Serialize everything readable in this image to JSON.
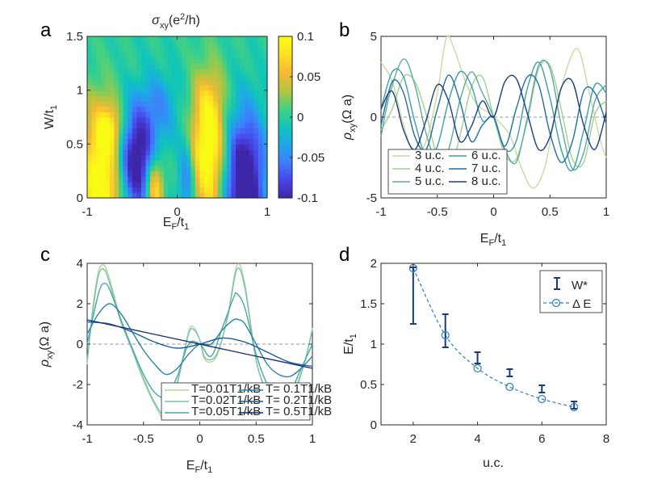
{
  "chart_data": [
    {
      "panel": "a",
      "type": "heatmap",
      "title": "σxy(e²/h)",
      "xlabel": "EF/t1",
      "ylabel": "W/t1",
      "xlim": [
        -1,
        1
      ],
      "ylim": [
        0,
        1.5
      ],
      "xticks": [
        "-1",
        "0",
        "1"
      ],
      "yticks": [
        "0",
        "0.5",
        "1",
        "1.5"
      ],
      "colorbar": {
        "min": -0.1,
        "max": 0.1,
        "ticks": [
          "-0.1",
          "-0.05",
          "0",
          "0.05",
          "0.1"
        ]
      },
      "colormap": [
        "#3e26a8",
        "#4744e8",
        "#3f7dfe",
        "#1ea8e6",
        "#10c5b8",
        "#45d180",
        "#b4c53e",
        "#f6b835",
        "#fbe023",
        "#f9fb15"
      ]
    },
    {
      "panel": "b",
      "type": "line",
      "xlabel": "EF/t1",
      "ylabel": "ρxy(Ω a)",
      "xlim": [
        -1,
        1
      ],
      "ylim": [
        -5,
        5
      ],
      "xticks": [
        "-1",
        "-0.5",
        "0",
        "0.5",
        "1"
      ],
      "yticks": [
        "-5",
        "0",
        "5"
      ],
      "series": [
        {
          "name": "3 u.c.",
          "color": "#c3dca2",
          "x": [
            -1,
            -0.9,
            -0.8,
            -0.7,
            -0.6,
            -0.5,
            -0.42,
            -0.35,
            -0.25,
            -0.15,
            -0.05,
            0,
            0.05,
            0.15,
            0.25,
            0.35,
            0.45,
            0.55,
            0.65,
            0.75,
            0.85,
            0.95,
            1
          ],
          "y": [
            3.4,
            2.2,
            -0.5,
            -2.3,
            -1.5,
            1.5,
            4.9,
            4.2,
            2.2,
            0.8,
            0.3,
            0,
            -0.3,
            -1.2,
            -3.2,
            -4.4,
            -3.2,
            0.2,
            3.0,
            4.2,
            1.5,
            -1.5,
            -2.5
          ]
        },
        {
          "name": "4 u.c.",
          "color": "#a2cf93",
          "x": [
            -1,
            -0.9,
            -0.8,
            -0.7,
            -0.6,
            -0.5,
            -0.4,
            -0.3,
            -0.2,
            -0.1,
            0,
            0.1,
            0.2,
            0.3,
            0.4,
            0.5,
            0.6,
            0.7,
            0.8,
            0.9,
            1
          ],
          "y": [
            -0.8,
            0.5,
            2.5,
            2.2,
            0.2,
            -2.5,
            -3.5,
            -1.2,
            1.8,
            2.5,
            0,
            -2.3,
            -2.6,
            -0.2,
            3.0,
            3.2,
            0.5,
            -2.6,
            -2.8,
            0.2,
            1.0
          ]
        },
        {
          "name": "5 u.c.",
          "color": "#5bac9c",
          "x": [
            -1,
            -0.92,
            -0.8,
            -0.7,
            -0.6,
            -0.5,
            -0.4,
            -0.3,
            -0.2,
            -0.1,
            0,
            0.1,
            0.2,
            0.3,
            0.4,
            0.5,
            0.6,
            0.7,
            0.8,
            0.9,
            1
          ],
          "y": [
            -1.2,
            1.5,
            3.6,
            2.0,
            -1.0,
            -2.8,
            -2.0,
            1.0,
            2.8,
            1.5,
            0,
            -2.0,
            -2.8,
            0.0,
            3.2,
            3.0,
            -0.5,
            -3.2,
            -2.2,
            1.0,
            2.0
          ]
        },
        {
          "name": "6 u.c.",
          "color": "#3a9fa8",
          "x": [
            -1,
            -0.9,
            -0.8,
            -0.7,
            -0.6,
            -0.5,
            -0.4,
            -0.3,
            -0.2,
            -0.1,
            0,
            0.1,
            0.2,
            0.3,
            0.4,
            0.5,
            0.6,
            0.7,
            0.8,
            0.9,
            1
          ],
          "y": [
            0.5,
            2.8,
            2.5,
            -0.3,
            -2.4,
            -1.8,
            1.0,
            2.8,
            2.0,
            -0.2,
            0,
            -2.0,
            -1.5,
            1.8,
            3.4,
            1.2,
            -2.0,
            -3.3,
            -0.8,
            2.0,
            1.5
          ]
        },
        {
          "name": "7 u.c.",
          "color": "#226f9e",
          "x": [
            -1,
            -0.9,
            -0.8,
            -0.7,
            -0.6,
            -0.5,
            -0.4,
            -0.3,
            -0.2,
            -0.1,
            0,
            0.1,
            0.2,
            0.3,
            0.4,
            0.5,
            0.6,
            0.7,
            0.8,
            0.9,
            1
          ],
          "y": [
            -0.5,
            2.2,
            1.5,
            -1.2,
            -2.0,
            0.5,
            2.6,
            1.0,
            -1.5,
            -0.5,
            0,
            -1.8,
            0.5,
            2.5,
            2.0,
            -1.0,
            -2.8,
            -1.5,
            1.6,
            1.5,
            -0.4
          ]
        },
        {
          "name": "8 u.c.",
          "color": "#1f3e7f",
          "x": [
            -1,
            -0.9,
            -0.8,
            -0.7,
            -0.6,
            -0.5,
            -0.4,
            -0.3,
            -0.2,
            -0.1,
            0,
            0.1,
            0.2,
            0.3,
            0.4,
            0.5,
            0.6,
            0.7,
            0.8,
            0.9,
            1
          ],
          "y": [
            0.5,
            1.6,
            -0.8,
            -2.0,
            -0.2,
            2.0,
            1.0,
            -1.5,
            -0.6,
            1.0,
            0,
            2.2,
            2.4,
            0.2,
            -2.0,
            -1.2,
            1.8,
            2.2,
            -0.5,
            -2.0,
            0.3
          ]
        }
      ]
    },
    {
      "panel": "c",
      "type": "line",
      "xlabel": "EF/t1",
      "ylabel": "ρxy(Ω a)",
      "xlim": [
        -1,
        1
      ],
      "ylim": [
        -4,
        4
      ],
      "xticks": [
        "-1",
        "-0.5",
        "0",
        "0.5",
        "1"
      ],
      "yticks": [
        "-4",
        "-2",
        "0",
        "2",
        "4"
      ],
      "series": [
        {
          "name": "T=0.01T1/kB",
          "color": "#b0d6a0",
          "x": [
            -1,
            -0.95,
            -0.9,
            -0.85,
            -0.8,
            -0.7,
            -0.6,
            -0.5,
            -0.4,
            -0.3,
            -0.2,
            -0.1,
            -0.05,
            0,
            0.05,
            0.15,
            0.25,
            0.33,
            0.4,
            0.5,
            0.6,
            0.7,
            0.8,
            0.9,
            0.95,
            1
          ],
          "y": [
            -1.0,
            1.8,
            3.6,
            3.9,
            3.2,
            1.2,
            -0.3,
            -1.8,
            -3.0,
            -3.7,
            -2.0,
            0.6,
            0.8,
            0.2,
            -0.8,
            -0.6,
            1.5,
            3.9,
            3.0,
            -0.8,
            -2.5,
            -3.6,
            -3.2,
            -1.5,
            -0.5,
            0.8
          ]
        },
        {
          "name": "T=0.02T1/kB",
          "color": "#7cc2a8",
          "x": [
            -1,
            -0.95,
            -0.9,
            -0.85,
            -0.8,
            -0.7,
            -0.6,
            -0.5,
            -0.4,
            -0.3,
            -0.2,
            -0.1,
            -0.05,
            0,
            0.05,
            0.15,
            0.25,
            0.33,
            0.4,
            0.5,
            0.6,
            0.7,
            0.8,
            0.9,
            0.95,
            1
          ],
          "y": [
            -0.8,
            1.6,
            3.4,
            3.7,
            3.0,
            1.1,
            -0.3,
            -1.7,
            -2.9,
            -3.5,
            -1.9,
            0.5,
            0.7,
            0.2,
            -0.7,
            -0.5,
            1.4,
            3.7,
            2.8,
            -0.8,
            -2.4,
            -3.4,
            -3.0,
            -1.4,
            -0.5,
            0.7
          ]
        },
        {
          "name": "T=0.05T1/kB",
          "color": "#4aa6a8",
          "x": [
            -1,
            -0.9,
            -0.85,
            -0.8,
            -0.7,
            -0.6,
            -0.5,
            -0.4,
            -0.3,
            -0.2,
            -0.1,
            0,
            0.1,
            0.2,
            0.3,
            0.33,
            0.4,
            0.5,
            0.6,
            0.7,
            0.8,
            0.9,
            1
          ],
          "y": [
            0.0,
            2.5,
            3.0,
            2.7,
            1.2,
            -0.2,
            -1.5,
            -2.4,
            -2.6,
            -1.6,
            0.0,
            0.0,
            -0.6,
            0.8,
            2.3,
            2.5,
            1.8,
            -0.5,
            -2.0,
            -2.7,
            -2.4,
            -1.2,
            0.0
          ]
        },
        {
          "name": "T= 0.1T1/kB",
          "color": "#2e84a8",
          "x": [
            -1,
            -0.9,
            -0.8,
            -0.7,
            -0.6,
            -0.5,
            -0.4,
            -0.3,
            -0.2,
            -0.1,
            0,
            0.1,
            0.2,
            0.3,
            0.35,
            0.4,
            0.5,
            0.6,
            0.7,
            0.8,
            0.9,
            1
          ],
          "y": [
            0.5,
            1.5,
            2.0,
            1.5,
            0.6,
            -0.3,
            -1.0,
            -1.5,
            -1.2,
            -0.5,
            0.0,
            0.0,
            0.7,
            1.2,
            1.2,
            1.0,
            0.0,
            -1.0,
            -1.5,
            -1.6,
            -1.2,
            -0.6
          ]
        },
        {
          "name": "T= 0.2T1/kB",
          "color": "#1d5d98",
          "x": [
            -1,
            -0.8,
            -0.6,
            -0.4,
            -0.2,
            0,
            0.2,
            0.4,
            0.6,
            0.8,
            1
          ],
          "y": [
            1.1,
            1.0,
            0.6,
            0.1,
            -0.2,
            0.0,
            0.3,
            0.1,
            -0.4,
            -0.9,
            -1.1
          ]
        },
        {
          "name": "T= 0.5T1/kB",
          "color": "#14306e",
          "x": [
            -1,
            -0.5,
            0,
            0.5,
            1
          ],
          "y": [
            1.2,
            0.6,
            0.0,
            -0.6,
            -1.2
          ]
        }
      ]
    },
    {
      "panel": "d",
      "type": "scatter",
      "xlabel": "u.c.",
      "ylabel": "E/t1",
      "xlim": [
        1,
        8
      ],
      "ylim": [
        0,
        2
      ],
      "xticks": [
        "2",
        "4",
        "6",
        "8"
      ],
      "yticks": [
        "0",
        "0.5",
        "1",
        "1.5",
        "2"
      ],
      "series": [
        {
          "name": "W*",
          "color": "#1b3a7a",
          "x": [
            2,
            3,
            4,
            5,
            6,
            7
          ],
          "low": [
            1.25,
            0.96,
            0.76,
            0.6,
            0.4,
            0.2
          ],
          "high": [
            1.95,
            1.37,
            0.9,
            0.69,
            0.49,
            0.29
          ]
        },
        {
          "name": "Δ E",
          "color": "#2b7fba",
          "x": [
            2,
            3,
            4,
            5,
            6,
            7
          ],
          "values": [
            1.94,
            1.11,
            0.7,
            0.47,
            0.32,
            0.22
          ]
        }
      ]
    }
  ],
  "panel_labels": [
    "a",
    "b",
    "c",
    "d"
  ],
  "legend_b": {
    "entries": [
      "3 u.c.",
      "4 u.c.",
      "5 u.c.",
      "6 u.c.",
      "7 u.c.",
      "8 u.c."
    ]
  },
  "legend_c": {
    "entries": [
      "T=0.01T1/kB",
      "T=0.02T1/kB",
      "T=0.05T1/kB",
      "T= 0.1T1/kB",
      "T= 0.2T1/kB",
      "T= 0.5T1/kB"
    ]
  },
  "legend_d": {
    "entries": [
      "W*",
      "Δ E"
    ]
  }
}
